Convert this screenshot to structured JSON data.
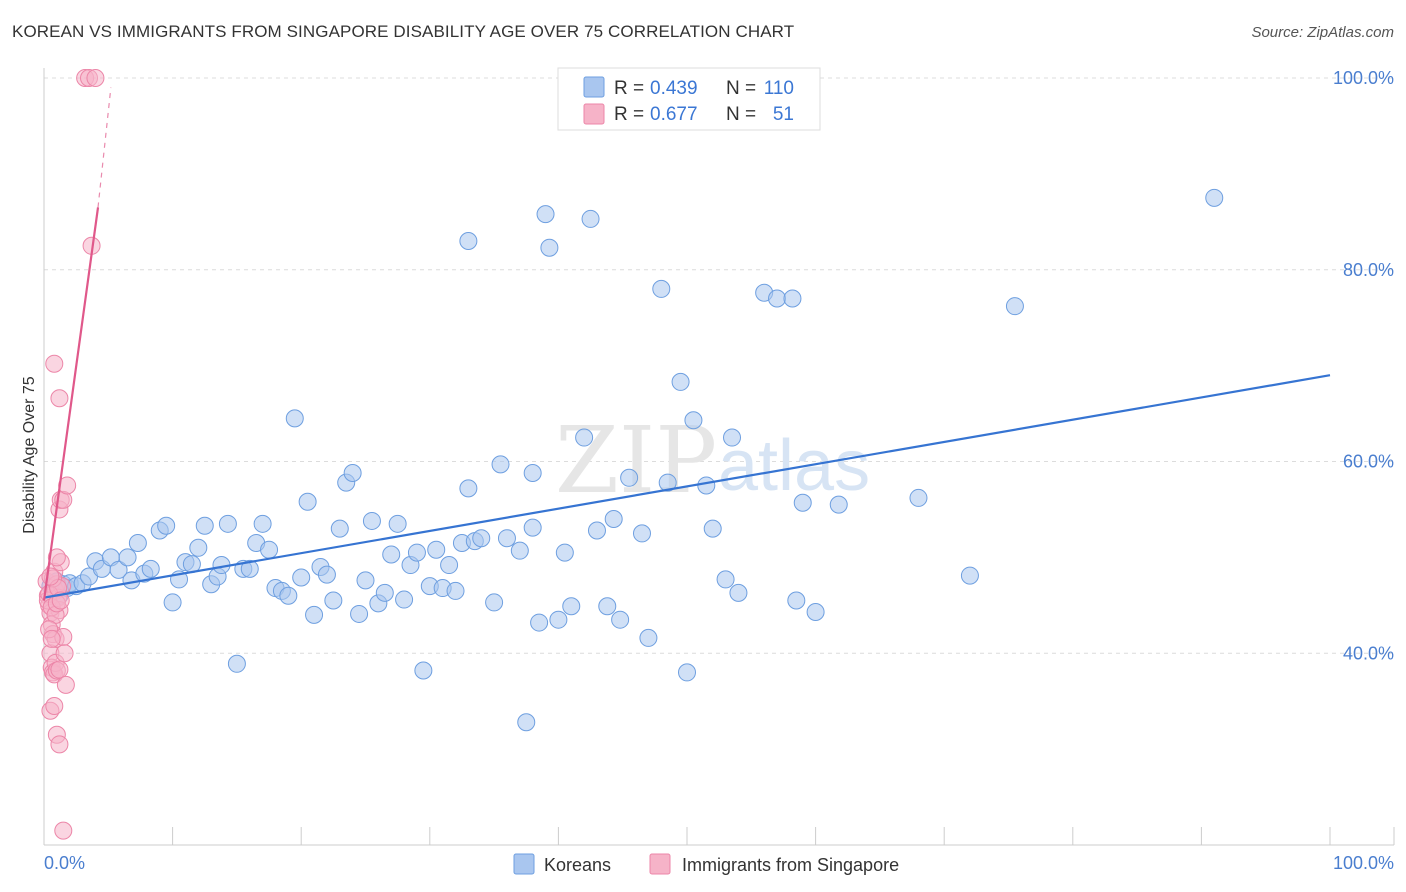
{
  "title": "KOREAN VS IMMIGRANTS FROM SINGAPORE DISABILITY AGE OVER 75 CORRELATION CHART",
  "source": "Source: ZipAtlas.com",
  "watermark": {
    "part1": "ZIP",
    "part2": "atlas"
  },
  "legend_box": {
    "rows": [
      {
        "r_label": "R = ",
        "r_value": "0.439",
        "n_label": "N = ",
        "n_value": "110",
        "color": "#a9c6ef"
      },
      {
        "r_label": "R = ",
        "r_value": "0.677",
        "n_label": "N = ",
        "n_value": "51",
        "color": "#f6b3c8"
      }
    ]
  },
  "bottom_legend": [
    {
      "label": "Koreans",
      "color": "#a9c6ef"
    },
    {
      "label": "Immigrants from Singapore",
      "color": "#f6b3c8"
    }
  ],
  "chart_data": {
    "type": "scatter",
    "xlabel": "",
    "ylabel": "Disability Age Over 75",
    "xlim": [
      0,
      100
    ],
    "ylim": [
      20,
      100
    ],
    "x_tick_labels": [
      "0.0%",
      "100.0%"
    ],
    "y_ticks": [
      40,
      60,
      80,
      100
    ],
    "y_tick_labels": [
      "40.0%",
      "60.0%",
      "80.0%",
      "100.0%"
    ],
    "grid": true,
    "series": [
      {
        "name": "Koreans",
        "color": "#a9c6ef",
        "stroke": "#6e9fe0",
        "trend": {
          "x": [
            0,
            100
          ],
          "y": [
            45.8,
            69.0
          ],
          "color": "#3674d2"
        },
        "points": [
          [
            0.5,
            47.0
          ],
          [
            0.8,
            46.5
          ],
          [
            1.0,
            47.5
          ],
          [
            1.2,
            46.0
          ],
          [
            1.5,
            47.2
          ],
          [
            1.8,
            46.8
          ],
          [
            2.0,
            47.3
          ],
          [
            2.5,
            47.0
          ],
          [
            3.0,
            47.3
          ],
          [
            3.5,
            48.0
          ],
          [
            4.0,
            49.6
          ],
          [
            4.5,
            48.8
          ],
          [
            5.2,
            50.0
          ],
          [
            5.8,
            48.7
          ],
          [
            6.5,
            50.0
          ],
          [
            6.8,
            47.6
          ],
          [
            7.3,
            51.5
          ],
          [
            7.8,
            48.3
          ],
          [
            8.3,
            48.8
          ],
          [
            9.0,
            52.8
          ],
          [
            9.5,
            53.3
          ],
          [
            10.0,
            45.3
          ],
          [
            10.5,
            47.7
          ],
          [
            11.0,
            49.5
          ],
          [
            11.5,
            49.3
          ],
          [
            12.0,
            51.0
          ],
          [
            12.5,
            53.3
          ],
          [
            13.0,
            47.2
          ],
          [
            13.5,
            48.0
          ],
          [
            13.8,
            49.2
          ],
          [
            14.3,
            53.5
          ],
          [
            15.0,
            38.9
          ],
          [
            15.5,
            48.8
          ],
          [
            16.0,
            48.8
          ],
          [
            16.5,
            51.5
          ],
          [
            17.0,
            53.5
          ],
          [
            17.5,
            50.8
          ],
          [
            18.0,
            46.8
          ],
          [
            18.5,
            46.5
          ],
          [
            19.0,
            46.0
          ],
          [
            19.5,
            64.5
          ],
          [
            20.0,
            47.9
          ],
          [
            20.5,
            55.8
          ],
          [
            21.0,
            44.0
          ],
          [
            21.5,
            49.0
          ],
          [
            22.0,
            48.2
          ],
          [
            22.5,
            45.5
          ],
          [
            23.0,
            53.0
          ],
          [
            23.5,
            57.8
          ],
          [
            24.0,
            58.8
          ],
          [
            24.5,
            44.1
          ],
          [
            25.0,
            47.6
          ],
          [
            25.5,
            53.8
          ],
          [
            26.0,
            45.2
          ],
          [
            26.5,
            46.3
          ],
          [
            27.0,
            50.3
          ],
          [
            27.5,
            53.5
          ],
          [
            28.0,
            45.6
          ],
          [
            28.5,
            49.2
          ],
          [
            29.0,
            50.5
          ],
          [
            29.5,
            38.2
          ],
          [
            30.0,
            47.0
          ],
          [
            30.5,
            50.8
          ],
          [
            31.0,
            46.8
          ],
          [
            31.5,
            49.2
          ],
          [
            32.0,
            46.5
          ],
          [
            32.5,
            51.5
          ],
          [
            33.0,
            57.2
          ],
          [
            33.5,
            51.7
          ],
          [
            34.0,
            52.0
          ],
          [
            35.0,
            45.3
          ],
          [
            35.5,
            59.7
          ],
          [
            36.0,
            52.0
          ],
          [
            37.0,
            50.7
          ],
          [
            37.5,
            32.8
          ],
          [
            38.0,
            53.1
          ],
          [
            38.5,
            43.2
          ],
          [
            39.0,
            85.8
          ],
          [
            39.3,
            82.3
          ],
          [
            40.0,
            43.5
          ],
          [
            40.5,
            50.5
          ],
          [
            41.0,
            44.9
          ],
          [
            42.0,
            62.5
          ],
          [
            42.5,
            85.3
          ],
          [
            43.0,
            52.8
          ],
          [
            43.8,
            44.9
          ],
          [
            44.3,
            54.0
          ],
          [
            44.8,
            43.5
          ],
          [
            45.5,
            58.3
          ],
          [
            46.5,
            52.5
          ],
          [
            47.0,
            41.6
          ],
          [
            48.0,
            78.0
          ],
          [
            48.5,
            57.8
          ],
          [
            49.5,
            68.3
          ],
          [
            50.0,
            38.0
          ],
          [
            50.5,
            64.3
          ],
          [
            51.5,
            57.5
          ],
          [
            52.0,
            53.0
          ],
          [
            53.0,
            47.7
          ],
          [
            53.5,
            62.5
          ],
          [
            54.0,
            46.3
          ],
          [
            56.0,
            77.6
          ],
          [
            57.0,
            77.0
          ],
          [
            58.2,
            77.0
          ],
          [
            58.5,
            45.5
          ],
          [
            59.0,
            55.7
          ],
          [
            60.0,
            44.3
          ],
          [
            61.8,
            55.5
          ],
          [
            68.0,
            56.2
          ],
          [
            72.0,
            48.1
          ],
          [
            75.5,
            76.2
          ],
          [
            91.0,
            87.5
          ],
          [
            38.0,
            58.8
          ],
          [
            33.0,
            83.0
          ]
        ]
      },
      {
        "name": "Immigrants from Singapore",
        "color": "#f6b3c8",
        "stroke": "#ec86a8",
        "trend": {
          "x": [
            0,
            4.2
          ],
          "y": [
            45.5,
            86.5
          ],
          "dashed_to": [
            5.2,
            99.0
          ],
          "color": "#e0588a"
        },
        "points": [
          [
            0.2,
            47.5
          ],
          [
            0.3,
            46.0
          ],
          [
            0.4,
            45.0
          ],
          [
            0.5,
            44.2
          ],
          [
            0.6,
            43.0
          ],
          [
            0.7,
            42.0
          ],
          [
            0.8,
            48.5
          ],
          [
            0.9,
            46.5
          ],
          [
            1.0,
            47.2
          ],
          [
            1.1,
            45.8
          ],
          [
            1.2,
            44.5
          ],
          [
            1.3,
            49.5
          ],
          [
            1.4,
            47.0
          ],
          [
            0.5,
            40.0
          ],
          [
            0.6,
            38.5
          ],
          [
            0.7,
            38.0
          ],
          [
            0.8,
            37.8
          ],
          [
            0.9,
            39.0
          ],
          [
            1.0,
            38.2
          ],
          [
            1.2,
            38.3
          ],
          [
            0.5,
            34.0
          ],
          [
            0.8,
            34.5
          ],
          [
            1.0,
            31.5
          ],
          [
            1.2,
            30.5
          ],
          [
            0.9,
            41.5
          ],
          [
            1.5,
            41.7
          ],
          [
            1.6,
            40.0
          ],
          [
            1.7,
            36.7
          ],
          [
            1.0,
            50.0
          ],
          [
            1.2,
            55.0
          ],
          [
            1.3,
            56.0
          ],
          [
            1.5,
            56.0
          ],
          [
            1.8,
            57.5
          ],
          [
            0.8,
            70.2
          ],
          [
            1.2,
            66.6
          ],
          [
            3.7,
            82.5
          ],
          [
            3.2,
            100.0
          ],
          [
            3.5,
            100.0
          ],
          [
            4.0,
            100.0
          ],
          [
            1.5,
            21.5
          ],
          [
            0.3,
            45.5
          ],
          [
            0.4,
            46.2
          ],
          [
            0.6,
            44.8
          ],
          [
            0.7,
            47.8
          ],
          [
            0.9,
            44.0
          ],
          [
            1.0,
            45.2
          ],
          [
            1.1,
            46.8
          ],
          [
            1.3,
            45.5
          ],
          [
            0.4,
            42.5
          ],
          [
            0.6,
            41.5
          ],
          [
            0.5,
            48.0
          ]
        ]
      }
    ]
  }
}
